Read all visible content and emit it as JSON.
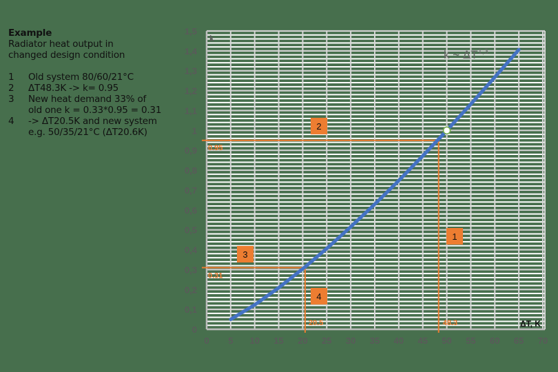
{
  "legend": {
    "title": "Example",
    "subtitle_lines": [
      "Radiator heat output in",
      "changed design condition"
    ],
    "items": [
      {
        "num": "1",
        "lines": [
          "Old system 80/60/21°C"
        ]
      },
      {
        "num": "2",
        "lines": [
          "ΔT48.3K -> k= 0.95"
        ]
      },
      {
        "num": "3",
        "lines": [
          "New heat demand 33% of",
          "old one  k = 0.33*0.95 = 0.31"
        ]
      },
      {
        "num": "4",
        "lines": [
          "-> ΔT20.5K and new system",
          "e.g. 50/35/21°C (ΔT20.6K)"
        ]
      }
    ]
  },
  "colors": {
    "background": "#476f4d",
    "curve": "#4472c4",
    "annotation": "#ed7d31",
    "grid": "#ffffff",
    "axis_text": "#5a5a5a"
  },
  "chart_data": {
    "type": "line",
    "title": "",
    "xlabel": "ΔT, K",
    "ylabel": "k",
    "formula_label": "k ~ ΔT^1,3",
    "formula_base": "k ~ ΔT",
    "formula_exp": "1,3",
    "xlim": [
      0,
      70
    ],
    "ylim": [
      0,
      1.5
    ],
    "x_ticks": [
      "0",
      "5",
      "10",
      "15",
      "20",
      "25",
      "30",
      "35",
      "40",
      "45",
      "50",
      "55",
      "60",
      "65",
      "70"
    ],
    "y_ticks": [
      "0",
      "0,1",
      "0,2",
      "0,3",
      "0,4",
      "0,5",
      "0,6",
      "0,7",
      "0,8",
      "0,9",
      "1",
      "1,1",
      "1,2",
      "1,3",
      "1,4",
      "1,5"
    ],
    "grid": true,
    "series": [
      {
        "name": "k ~ ΔT^1.3",
        "x": [
          5,
          10,
          15,
          20,
          20.5,
          25,
          30,
          35,
          40,
          45,
          48.3,
          50,
          55,
          60,
          65
        ],
        "values": [
          0.05,
          0.123,
          0.209,
          0.304,
          0.314,
          0.406,
          0.515,
          0.629,
          0.748,
          0.872,
          0.956,
          1.0,
          1.132,
          1.268,
          1.406
        ]
      }
    ],
    "reference_point": {
      "x": 50,
      "y": 1.0
    },
    "annotations": [
      {
        "id": "1",
        "type": "vline",
        "x": 48.3,
        "label": "48.3"
      },
      {
        "id": "2",
        "type": "hline",
        "y": 0.95,
        "label": "0.95"
      },
      {
        "id": "3",
        "type": "hline",
        "y": 0.31,
        "label": "0.31"
      },
      {
        "id": "4",
        "type": "vline",
        "x": 20.5,
        "label": "20.5"
      }
    ],
    "markers": [
      "1",
      "2",
      "3",
      "4"
    ]
  }
}
